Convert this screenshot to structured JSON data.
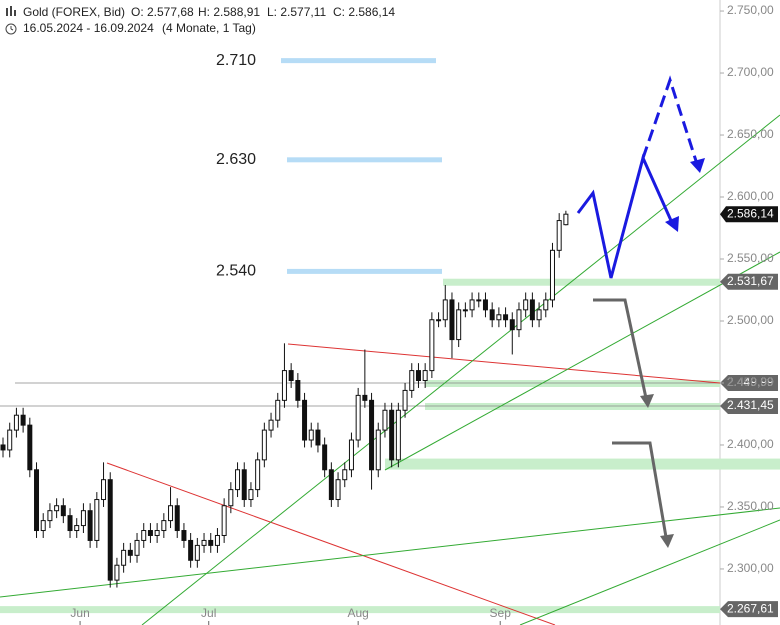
{
  "chart_data": {
    "type": "candlestick",
    "header": {
      "title": "Gold (FOREX, Bid)",
      "ohlc": [
        "O: 2.577,68",
        "H: 2.588,91",
        "L: 2.577,11",
        "C: 2.586,14"
      ],
      "range": "16.05.2024 - 16.09.2024",
      "period": "(4 Monate, 1 Tag)"
    },
    "open": [
      2400,
      2396,
      2412,
      2424,
      2416,
      2380,
      2331,
      2339,
      2347,
      2351,
      2343,
      2331,
      2335,
      2347,
      2323,
      2356,
      2372,
      2291,
      2303,
      2315,
      2311,
      2323,
      2331,
      2327,
      2331,
      2339,
      2351,
      2331,
      2323,
      2307,
      2319,
      2323,
      2319,
      2327,
      2351,
      2364,
      2380,
      2356,
      2364,
      2388,
      2412,
      2420,
      2436,
      2460,
      2452,
      2436,
      2404,
      2412,
      2400,
      2380,
      2356,
      2372,
      2380,
      2404,
      2440,
      2436,
      2380,
      2412,
      2428,
      2388,
      2428,
      2444,
      2460,
      2452,
      2460,
      2501,
      2501,
      2517,
      2485,
      2509,
      2509,
      2517,
      2517,
      2509,
      2501,
      2505,
      2501,
      2493,
      2509,
      2517,
      2501,
      2509,
      2517,
      2557,
      2577.68
    ],
    "high": [
      2406,
      2418,
      2430,
      2430,
      2422,
      2386,
      2345,
      2353,
      2357,
      2357,
      2349,
      2341,
      2353,
      2353,
      2362,
      2386,
      2378,
      2309,
      2321,
      2321,
      2329,
      2337,
      2337,
      2337,
      2345,
      2366,
      2357,
      2337,
      2329,
      2325,
      2329,
      2329,
      2333,
      2357,
      2370,
      2386,
      2386,
      2370,
      2394,
      2418,
      2426,
      2442,
      2482,
      2466,
      2458,
      2442,
      2418,
      2418,
      2406,
      2386,
      2378,
      2386,
      2410,
      2446,
      2477,
      2442,
      2418,
      2434,
      2434,
      2434,
      2450,
      2466,
      2466,
      2466,
      2507,
      2507,
      2529,
      2523,
      2515,
      2515,
      2523,
      2523,
      2523,
      2515,
      2511,
      2511,
      2507,
      2515,
      2523,
      2523,
      2515,
      2523,
      2563,
      2587,
      2588.91
    ],
    "low": [
      2390,
      2390,
      2406,
      2410,
      2374,
      2325,
      2325,
      2333,
      2341,
      2337,
      2325,
      2325,
      2329,
      2317,
      2317,
      2350,
      2285,
      2285,
      2297,
      2305,
      2305,
      2317,
      2321,
      2321,
      2325,
      2333,
      2325,
      2317,
      2301,
      2301,
      2313,
      2313,
      2313,
      2321,
      2345,
      2358,
      2350,
      2350,
      2358,
      2382,
      2406,
      2414,
      2430,
      2446,
      2430,
      2398,
      2398,
      2394,
      2374,
      2350,
      2350,
      2366,
      2374,
      2398,
      2430,
      2364,
      2374,
      2406,
      2382,
      2382,
      2422,
      2438,
      2446,
      2446,
      2454,
      2495,
      2495,
      2470,
      2479,
      2503,
      2503,
      2511,
      2503,
      2495,
      2495,
      2495,
      2473,
      2487,
      2503,
      2495,
      2495,
      2503,
      2511,
      2551,
      2577.11
    ],
    "close": [
      2396,
      2412,
      2424,
      2416,
      2380,
      2331,
      2339,
      2347,
      2351,
      2343,
      2331,
      2335,
      2347,
      2323,
      2356,
      2372,
      2291,
      2303,
      2315,
      2311,
      2323,
      2331,
      2327,
      2331,
      2339,
      2351,
      2331,
      2323,
      2307,
      2319,
      2323,
      2319,
      2327,
      2351,
      2364,
      2380,
      2356,
      2364,
      2388,
      2412,
      2420,
      2436,
      2460,
      2452,
      2436,
      2404,
      2412,
      2400,
      2380,
      2356,
      2372,
      2380,
      2404,
      2440,
      2436,
      2380,
      2412,
      2428,
      2388,
      2428,
      2444,
      2460,
      2452,
      2460,
      2501,
      2501,
      2517,
      2485,
      2509,
      2509,
      2517,
      2517,
      2509,
      2501,
      2505,
      2501,
      2493,
      2509,
      2517,
      2501,
      2509,
      2517,
      2557,
      2581,
      2586.14
    ],
    "xlim": [
      -0.45,
      107
    ],
    "xticks": [
      {
        "value": 11.5,
        "label": "Jun"
      },
      {
        "value": 30.7,
        "label": "Jul"
      },
      {
        "value": 53,
        "label": "Aug"
      },
      {
        "value": 74.2,
        "label": "Sep"
      }
    ],
    "ylim": [
      2254.8,
      2758.9
    ],
    "yticks": [
      {
        "value": 2750,
        "label": "2.750,00"
      },
      {
        "value": 2700,
        "label": "2.700,00"
      },
      {
        "value": 2650,
        "label": "2.650,00"
      },
      {
        "value": 2600,
        "label": "2.600,00"
      },
      {
        "value": 2550,
        "label": "2.550,00"
      },
      {
        "value": 2500,
        "label": "2.500,00"
      },
      {
        "value": 2450,
        "label": "2.450,00"
      },
      {
        "value": 2400,
        "label": "2.400,00"
      },
      {
        "value": 2350,
        "label": "2.350,00"
      },
      {
        "value": 2300,
        "label": "2.300,00"
      }
    ],
    "last_price": {
      "value": 2586.14,
      "label": "2.586,14"
    },
    "levels": [
      {
        "value": 2531.67,
        "label": "2.531,67"
      },
      {
        "value": 2449.99,
        "label": "2.449,99"
      },
      {
        "value": 2431.45,
        "label": "2.431,45"
      },
      {
        "value": 2267.61,
        "label": "2.267,61"
      }
    ],
    "zone": 2385,
    "targets": [
      {
        "value": 2710,
        "label": "2.710"
      },
      {
        "value": 2630,
        "label": "2.630"
      },
      {
        "value": 2540,
        "label": "2.540"
      }
    ],
    "zone_color": "#c8eecb",
    "target_color": "#b6dcf6"
  }
}
